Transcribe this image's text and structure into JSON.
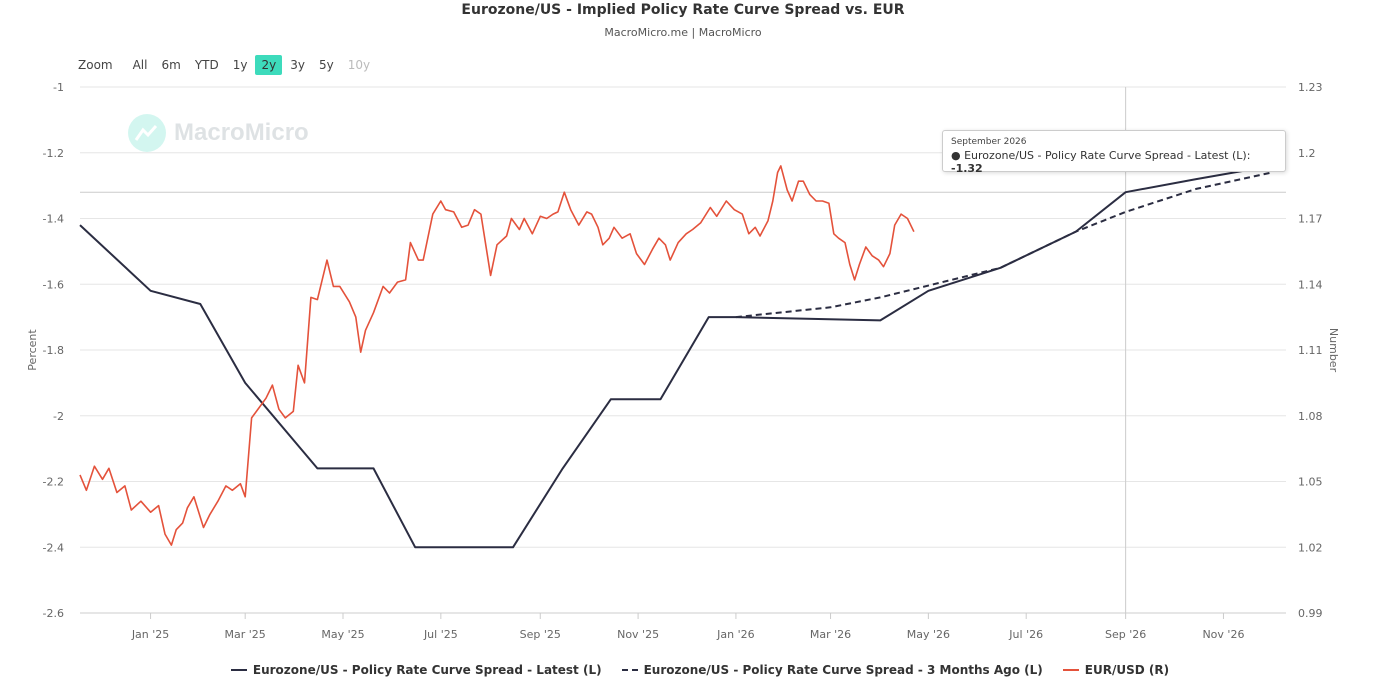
{
  "title": "Eurozone/US - Implied Policy Rate Curve Spread vs. EUR",
  "subtitle": "MacroMicro.me | MacroMicro",
  "watermark": "MacroMicro",
  "zoom": {
    "label": "Zoom",
    "buttons": [
      "All",
      "6m",
      "YTD",
      "1y",
      "2y",
      "3y",
      "5y",
      "10y"
    ],
    "active": "2y",
    "disabled": [
      "10y"
    ]
  },
  "tooltip": {
    "date": "September 2026",
    "series": "Eurozone/US - Policy Rate Curve Spread - Latest (L):",
    "value": "-1.32"
  },
  "colors": {
    "latest": "#2b2d42",
    "three_months_ago": "#2b2d42",
    "eurusd": "#e4523b",
    "accent": "#3ddbbc"
  },
  "chart_data": {
    "type": "line",
    "xaxis": {
      "ticks": [
        "Jan '25",
        "Mar '25",
        "May '25",
        "Jul '25",
        "Sep '25",
        "Nov '25",
        "Jan '26",
        "Mar '26",
        "May '26",
        "Jul '26",
        "Sep '26",
        "Nov '26"
      ],
      "range": [
        "2024-11-18",
        "2026-12-10"
      ]
    },
    "left_axis": {
      "label": "Percent",
      "ticks": [
        "-1",
        "-1.2",
        "-1.4",
        "-1.6",
        "-1.8",
        "-2",
        "-2.2",
        "-2.4",
        "-2.6"
      ],
      "range": [
        -2.6,
        -1
      ]
    },
    "right_axis": {
      "label": "Number",
      "ticks": [
        "1.23",
        "1.2",
        "1.17",
        "1.14",
        "1.11",
        "1.08",
        "1.05",
        "1.02",
        "0.99"
      ],
      "range": [
        0.99,
        1.23
      ]
    },
    "crosshair": {
      "date": "2026-09-01",
      "value": -1.32
    },
    "series": [
      {
        "name": "Eurozone/US - Policy Rate Curve Spread - Latest (L)",
        "axis": "left",
        "style": "solid",
        "points": [
          [
            "2024-11-18",
            -1.42
          ],
          [
            "2025-01-01",
            -1.62
          ],
          [
            "2025-02-01",
            -1.66
          ],
          [
            "2025-03-01",
            -1.9
          ],
          [
            "2025-04-15",
            -2.16
          ],
          [
            "2025-05-20",
            -2.16
          ],
          [
            "2025-06-15",
            -2.4
          ],
          [
            "2025-07-15",
            -2.4
          ],
          [
            "2025-08-15",
            -2.4
          ],
          [
            "2025-09-15",
            -2.16
          ],
          [
            "2025-10-15",
            -1.95
          ],
          [
            "2025-11-15",
            -1.95
          ],
          [
            "2025-12-15",
            -1.7
          ],
          [
            "2026-01-01",
            -1.7
          ],
          [
            "2026-04-01",
            -1.71
          ],
          [
            "2026-05-01",
            -1.62
          ],
          [
            "2026-06-15",
            -1.55
          ],
          [
            "2026-08-01",
            -1.44
          ],
          [
            "2026-09-01",
            -1.32
          ],
          [
            "2026-10-15",
            -1.28
          ],
          [
            "2026-12-01",
            -1.24
          ]
        ]
      },
      {
        "name": "Eurozone/US - Policy Rate Curve Spread - 3 Months Ago (L)",
        "axis": "left",
        "style": "dashed",
        "points": [
          [
            "2026-01-01",
            -1.7
          ],
          [
            "2026-03-01",
            -1.67
          ],
          [
            "2026-04-01",
            -1.64
          ],
          [
            "2026-06-15",
            -1.55
          ],
          [
            "2026-08-01",
            -1.44
          ],
          [
            "2026-09-01",
            -1.38
          ],
          [
            "2026-10-15",
            -1.31
          ],
          [
            "2026-12-01",
            -1.26
          ]
        ]
      },
      {
        "name": "EUR/USD (R)",
        "axis": "right",
        "style": "solid",
        "points": [
          [
            "2024-11-18",
            1.053
          ],
          [
            "2024-11-22",
            1.046
          ],
          [
            "2024-11-27",
            1.057
          ],
          [
            "2024-12-02",
            1.051
          ],
          [
            "2024-12-06",
            1.056
          ],
          [
            "2024-12-11",
            1.045
          ],
          [
            "2024-12-16",
            1.048
          ],
          [
            "2024-12-20",
            1.037
          ],
          [
            "2024-12-26",
            1.041
          ],
          [
            "2025-01-01",
            1.036
          ],
          [
            "2025-01-06",
            1.039
          ],
          [
            "2025-01-10",
            1.026
          ],
          [
            "2025-01-14",
            1.021
          ],
          [
            "2025-01-17",
            1.028
          ],
          [
            "2025-01-21",
            1.031
          ],
          [
            "2025-01-24",
            1.038
          ],
          [
            "2025-01-28",
            1.043
          ],
          [
            "2025-02-03",
            1.029
          ],
          [
            "2025-02-07",
            1.035
          ],
          [
            "2025-02-12",
            1.041
          ],
          [
            "2025-02-17",
            1.048
          ],
          [
            "2025-02-21",
            1.046
          ],
          [
            "2025-02-26",
            1.049
          ],
          [
            "2025-03-01",
            1.043
          ],
          [
            "2025-03-05",
            1.079
          ],
          [
            "2025-03-10",
            1.084
          ],
          [
            "2025-03-14",
            1.088
          ],
          [
            "2025-03-18",
            1.094
          ],
          [
            "2025-03-22",
            1.083
          ],
          [
            "2025-03-26",
            1.079
          ],
          [
            "2025-03-31",
            1.082
          ],
          [
            "2025-04-03",
            1.103
          ],
          [
            "2025-04-07",
            1.095
          ],
          [
            "2025-04-11",
            1.134
          ],
          [
            "2025-04-15",
            1.133
          ],
          [
            "2025-04-21",
            1.151
          ],
          [
            "2025-04-25",
            1.139
          ],
          [
            "2025-04-29",
            1.139
          ],
          [
            "2025-05-05",
            1.132
          ],
          [
            "2025-05-09",
            1.125
          ],
          [
            "2025-05-12",
            1.109
          ],
          [
            "2025-05-15",
            1.119
          ],
          [
            "2025-05-20",
            1.127
          ],
          [
            "2025-05-26",
            1.139
          ],
          [
            "2025-05-30",
            1.136
          ],
          [
            "2025-06-04",
            1.141
          ],
          [
            "2025-06-09",
            1.142
          ],
          [
            "2025-06-12",
            1.159
          ],
          [
            "2025-06-17",
            1.151
          ],
          [
            "2025-06-20",
            1.151
          ],
          [
            "2025-06-26",
            1.172
          ],
          [
            "2025-07-01",
            1.178
          ],
          [
            "2025-07-04",
            1.174
          ],
          [
            "2025-07-09",
            1.173
          ],
          [
            "2025-07-14",
            1.166
          ],
          [
            "2025-07-18",
            1.167
          ],
          [
            "2025-07-22",
            1.174
          ],
          [
            "2025-07-26",
            1.172
          ],
          [
            "2025-08-01",
            1.144
          ],
          [
            "2025-08-05",
            1.158
          ],
          [
            "2025-08-11",
            1.162
          ],
          [
            "2025-08-14",
            1.17
          ],
          [
            "2025-08-19",
            1.165
          ],
          [
            "2025-08-22",
            1.17
          ],
          [
            "2025-08-27",
            1.163
          ],
          [
            "2025-09-01",
            1.171
          ],
          [
            "2025-09-05",
            1.17
          ],
          [
            "2025-09-09",
            1.172
          ],
          [
            "2025-09-12",
            1.173
          ],
          [
            "2025-09-16",
            1.182
          ],
          [
            "2025-09-20",
            1.174
          ],
          [
            "2025-09-25",
            1.167
          ],
          [
            "2025-09-30",
            1.173
          ],
          [
            "2025-10-03",
            1.172
          ],
          [
            "2025-10-07",
            1.166
          ],
          [
            "2025-10-10",
            1.158
          ],
          [
            "2025-10-14",
            1.161
          ],
          [
            "2025-10-17",
            1.166
          ],
          [
            "2025-10-22",
            1.161
          ],
          [
            "2025-10-27",
            1.163
          ],
          [
            "2025-10-31",
            1.154
          ],
          [
            "2025-11-05",
            1.149
          ],
          [
            "2025-11-10",
            1.156
          ],
          [
            "2025-11-14",
            1.161
          ],
          [
            "2025-11-18",
            1.158
          ],
          [
            "2025-11-21",
            1.151
          ],
          [
            "2025-11-26",
            1.159
          ],
          [
            "2025-12-01",
            1.163
          ],
          [
            "2025-12-05",
            1.165
          ],
          [
            "2025-12-10",
            1.168
          ],
          [
            "2025-12-16",
            1.175
          ],
          [
            "2025-12-20",
            1.171
          ],
          [
            "2025-12-26",
            1.178
          ],
          [
            "2025-12-31",
            1.174
          ],
          [
            "2026-01-05",
            1.172
          ],
          [
            "2026-01-09",
            1.163
          ],
          [
            "2026-01-13",
            1.166
          ],
          [
            "2026-01-16",
            1.162
          ],
          [
            "2026-01-21",
            1.169
          ],
          [
            "2026-01-24",
            1.178
          ],
          [
            "2026-01-27",
            1.191
          ],
          [
            "2026-01-29",
            1.194
          ],
          [
            "2026-02-02",
            1.183
          ],
          [
            "2026-02-05",
            1.178
          ],
          [
            "2026-02-09",
            1.187
          ],
          [
            "2026-02-12",
            1.187
          ],
          [
            "2026-02-16",
            1.181
          ],
          [
            "2026-02-20",
            1.178
          ],
          [
            "2026-02-24",
            1.178
          ],
          [
            "2026-02-28",
            1.177
          ],
          [
            "2026-03-03",
            1.163
          ],
          [
            "2026-03-06",
            1.161
          ],
          [
            "2026-03-10",
            1.159
          ],
          [
            "2026-03-13",
            1.149
          ],
          [
            "2026-03-16",
            1.142
          ],
          [
            "2026-03-19",
            1.149
          ],
          [
            "2026-03-23",
            1.157
          ],
          [
            "2026-03-27",
            1.153
          ],
          [
            "2026-03-31",
            1.151
          ],
          [
            "2026-04-03",
            1.148
          ],
          [
            "2026-04-07",
            1.154
          ],
          [
            "2026-04-10",
            1.167
          ],
          [
            "2026-04-14",
            1.172
          ],
          [
            "2026-04-18",
            1.17
          ],
          [
            "2026-04-22",
            1.164
          ]
        ]
      }
    ],
    "legend": [
      {
        "label": "Eurozone/US - Policy Rate Curve Spread - Latest (L)",
        "style": "solid",
        "color": "#2b2d42"
      },
      {
        "label": "Eurozone/US - Policy Rate Curve Spread - 3 Months Ago (L)",
        "style": "dashed",
        "color": "#2b2d42"
      },
      {
        "label": "EUR/USD (R)",
        "style": "solid",
        "color": "#e4523b"
      }
    ],
    "legend_position": "bottom"
  }
}
